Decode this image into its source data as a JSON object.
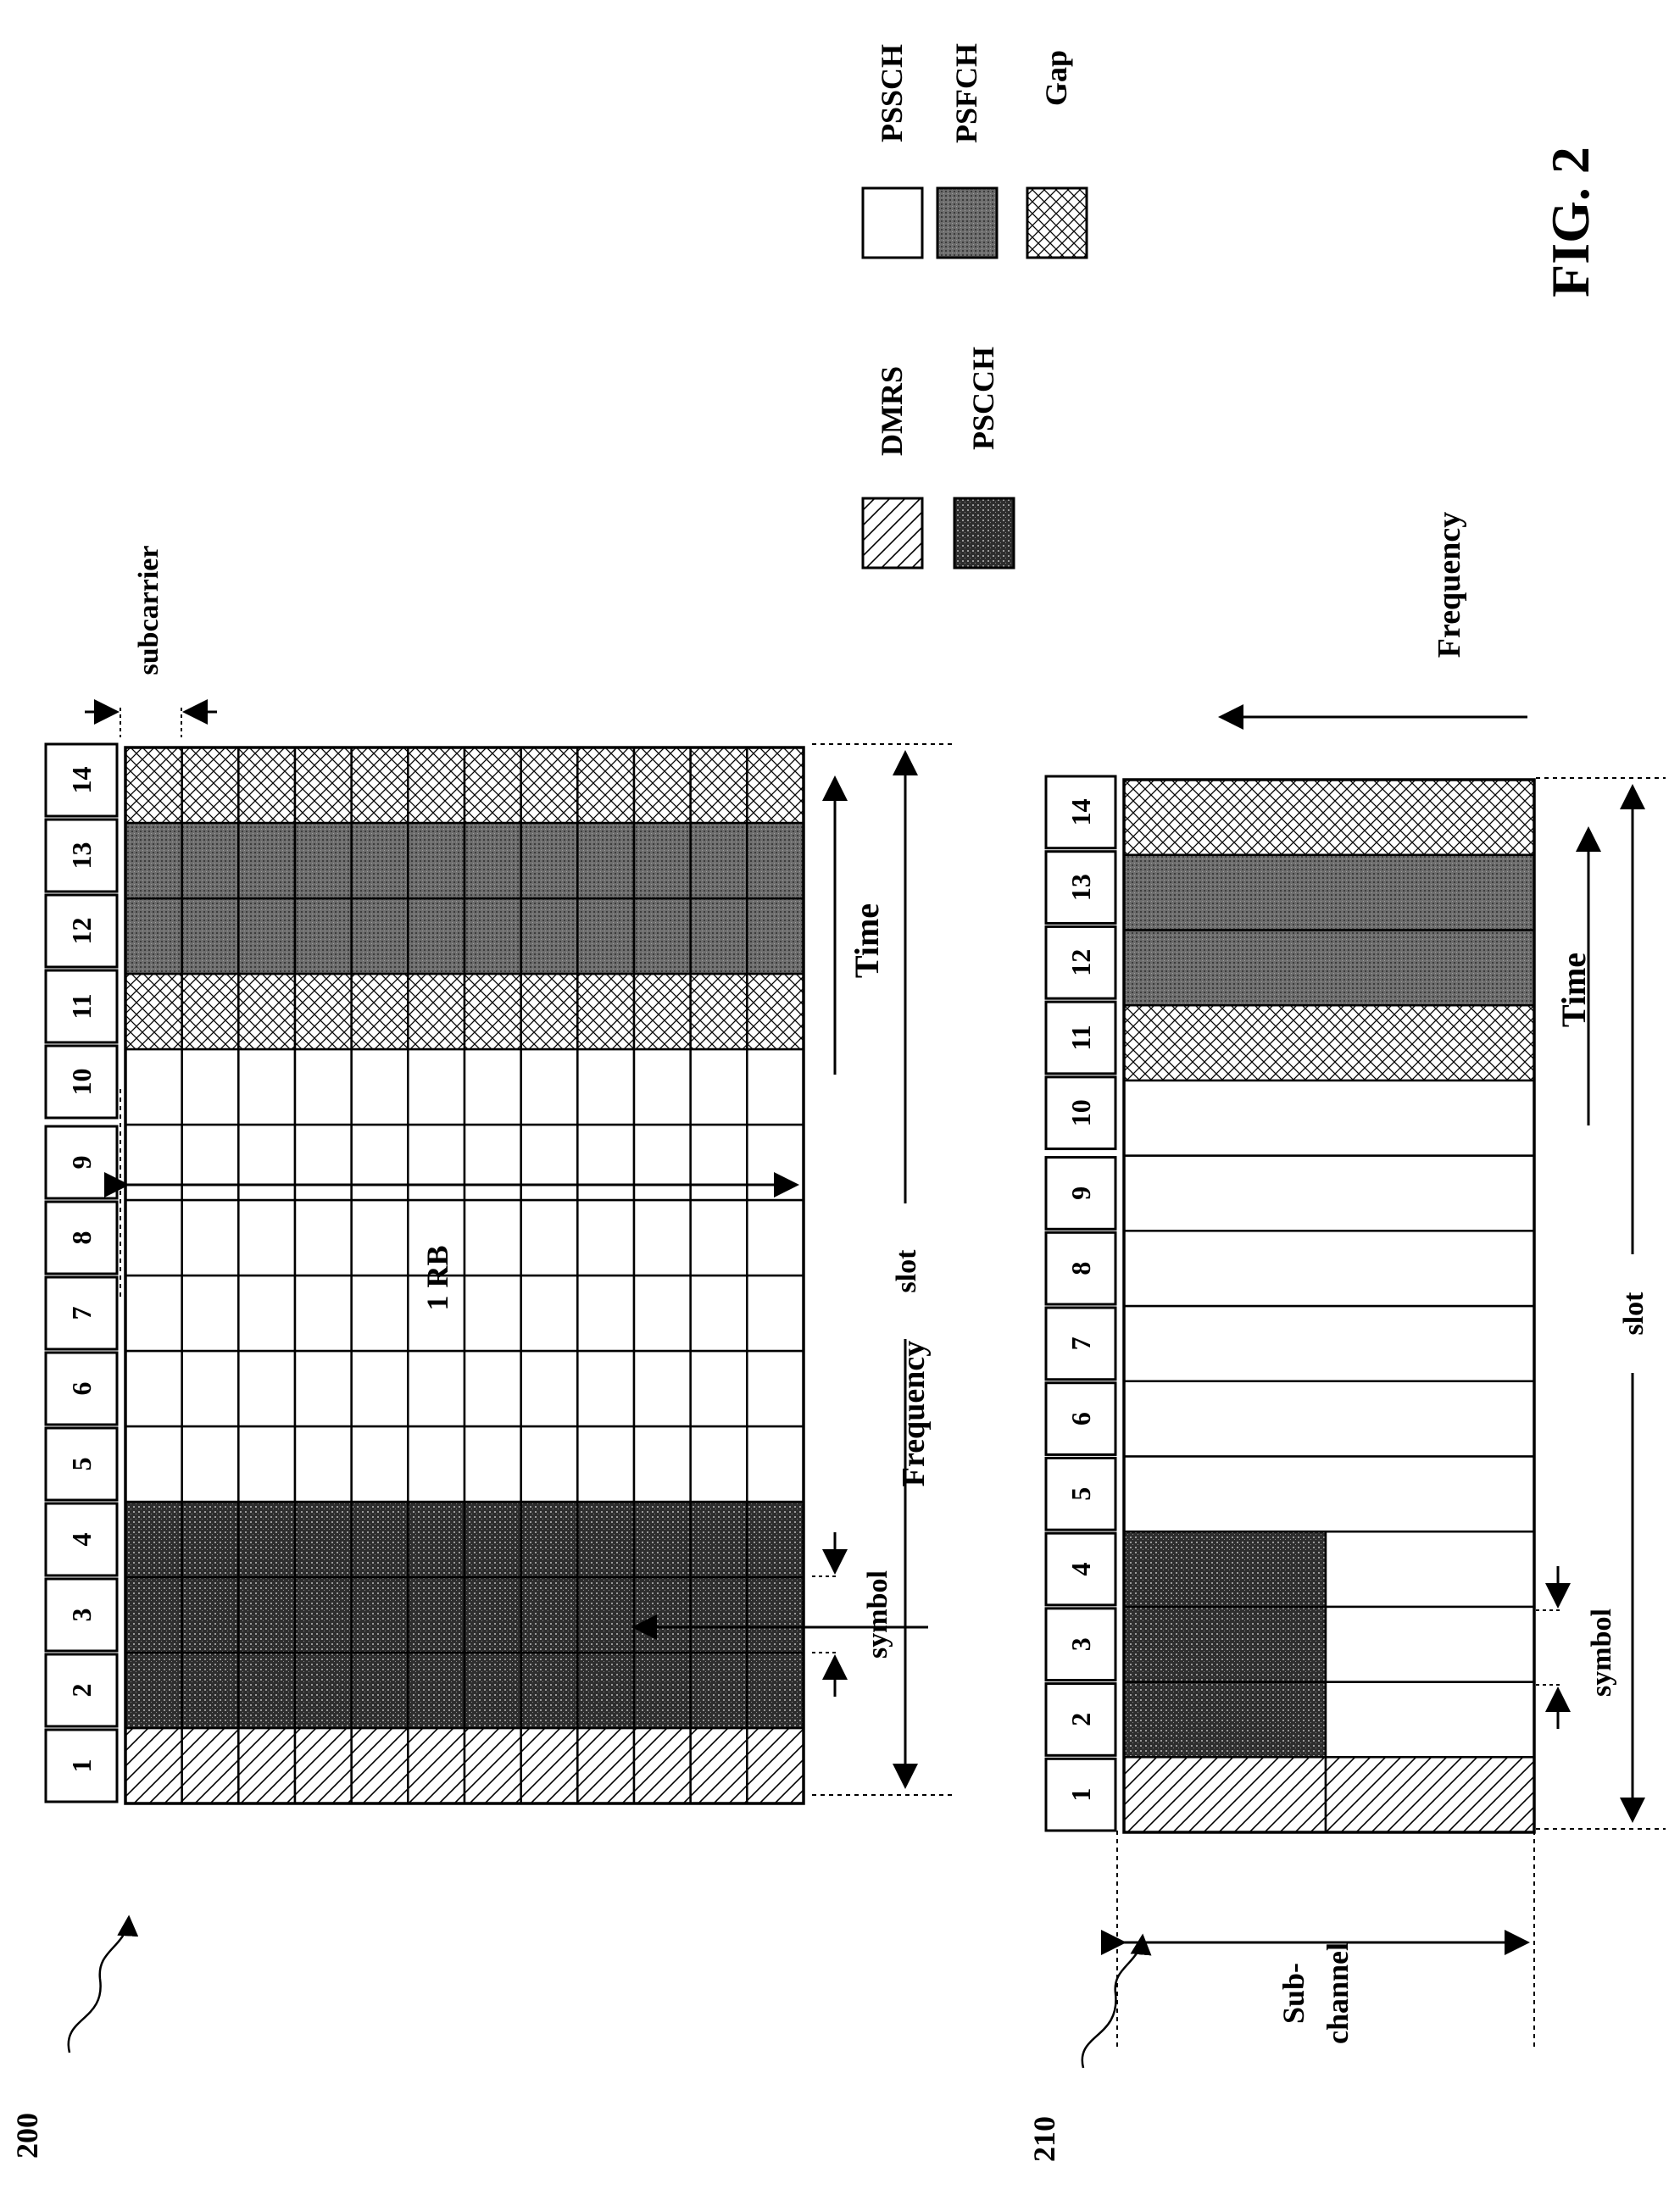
{
  "figure_label": "FIG. 2",
  "legend": {
    "dmrs": "DMRS",
    "pscch": "PSCCH",
    "pssch": "PSSCH",
    "psfch": "PSFCH",
    "gap": "Gap"
  },
  "top_diagram": {
    "ref": "200",
    "symbols": [
      "1",
      "2",
      "3",
      "4",
      "5",
      "6",
      "7",
      "8",
      "9",
      "10",
      "11",
      "12",
      "13",
      "14"
    ],
    "subcarrier_count": 12,
    "symbol_types": [
      "dmrs",
      "pscch",
      "pscch",
      "pscch",
      "pssch",
      "pssch",
      "pssch",
      "pssch",
      "pssch",
      "pssch",
      "gap",
      "psfch",
      "psfch",
      "gap"
    ],
    "rb_label": "1 RB",
    "frequency_label": "Frequency",
    "time_label": "Time",
    "slot_label": "slot",
    "symbol_label": "symbol",
    "subcarrier_label": "subcarrier"
  },
  "bottom_diagram": {
    "ref": "210",
    "symbols": [
      "1",
      "2",
      "3",
      "4",
      "5",
      "6",
      "7",
      "8",
      "9",
      "10",
      "11",
      "12",
      "13",
      "14"
    ],
    "symbol_types": [
      "dmrs",
      "pscch",
      "pscch",
      "pscch",
      "pssch",
      "pssch",
      "pssch",
      "pssch",
      "pssch",
      "pssch",
      "gap",
      "psfch",
      "psfch",
      "gap"
    ],
    "subchannel_label_1": "Sub-",
    "subchannel_label_2": "channel",
    "frequency_label": "Frequency",
    "time_label": "Time",
    "slot_label": "slot",
    "symbol_label": "symbol"
  }
}
